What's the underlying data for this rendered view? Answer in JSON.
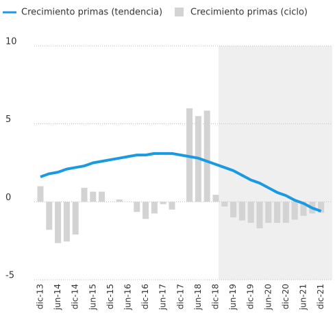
{
  "chart_data": {
    "type": "bar_line",
    "categories": [
      "dic-13",
      null,
      "jun-14",
      null,
      "dic-14",
      null,
      "jun-15",
      null,
      "dic-15",
      null,
      "jun-16",
      null,
      "dic-16",
      null,
      "jun-17",
      null,
      "dic-17",
      null,
      "jun-18",
      null,
      "dic-18",
      null,
      "jun-19",
      null,
      "dic-19",
      null,
      "jun-20",
      null,
      "dic-20",
      null,
      "jun-21",
      null,
      "dic-21"
    ],
    "series": [
      {
        "name": "Crecimiento primas (tendencia)",
        "type": "line",
        "color": "#1a9ae0",
        "values": [
          1.6,
          1.8,
          1.9,
          2.1,
          2.2,
          2.3,
          2.5,
          2.6,
          2.7,
          2.8,
          2.9,
          3.0,
          3.0,
          3.1,
          3.1,
          3.1,
          3.0,
          2.9,
          2.8,
          2.6,
          2.4,
          2.2,
          2.0,
          1.7,
          1.4,
          1.2,
          0.9,
          0.6,
          0.4,
          0.1,
          -0.1,
          -0.4,
          -0.6
        ]
      },
      {
        "name": "Crecimiento primas (ciclo)",
        "type": "bar",
        "color": "#d3d3d3",
        "values": [
          1.0,
          -1.8,
          -2.65,
          -2.55,
          -2.1,
          0.9,
          0.65,
          0.65,
          0,
          0.15,
          0,
          -0.65,
          -1.1,
          -0.75,
          -0.15,
          -0.5,
          0,
          6.0,
          5.5,
          5.85,
          0.45,
          -0.3,
          -1.0,
          -1.2,
          -1.35,
          -1.7,
          -1.35,
          -1.35,
          -1.35,
          -1.15,
          -0.9,
          -0.75,
          -0.7
        ]
      }
    ],
    "ylim": [
      -5,
      10
    ],
    "yticks": [
      -5,
      0,
      5,
      10
    ],
    "grid": true
  }
}
